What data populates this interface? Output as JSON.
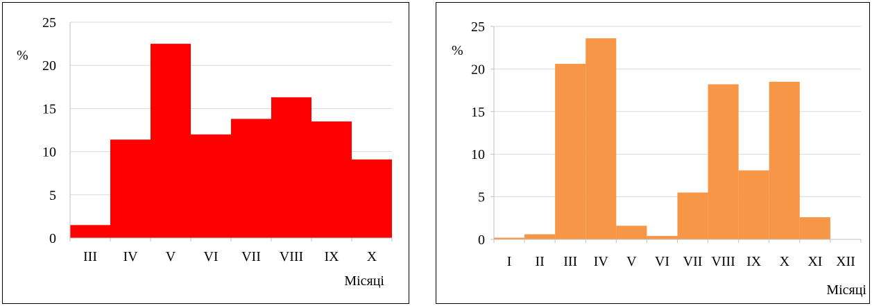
{
  "chart_data": [
    {
      "type": "bar",
      "categories": [
        "III",
        "IV",
        "V",
        "VI",
        "VII",
        "VIII",
        "IX",
        "X"
      ],
      "values": [
        1.5,
        11.4,
        22.5,
        12.0,
        13.8,
        16.3,
        13.5,
        9.1
      ],
      "ylabel": "%",
      "xlabel": "Місяці",
      "ylim": [
        0,
        25
      ],
      "yticks": [
        "0",
        "5",
        "10",
        "15",
        "20",
        "25"
      ],
      "grid": true,
      "color": "#ff0000"
    },
    {
      "type": "bar",
      "categories": [
        "I",
        "II",
        "III",
        "IV",
        "V",
        "VI",
        "VII",
        "VIII",
        "IX",
        "X",
        "XI",
        "XII"
      ],
      "values": [
        0.2,
        0.6,
        20.6,
        23.6,
        1.6,
        0.4,
        5.5,
        18.2,
        8.1,
        18.5,
        2.6,
        0
      ],
      "ylabel": "%",
      "xlabel": "Місяці",
      "ylim": [
        0,
        25
      ],
      "yticks": [
        "0",
        "5",
        "10",
        "15",
        "20",
        "25"
      ],
      "grid": true,
      "color": "#f79646"
    }
  ]
}
